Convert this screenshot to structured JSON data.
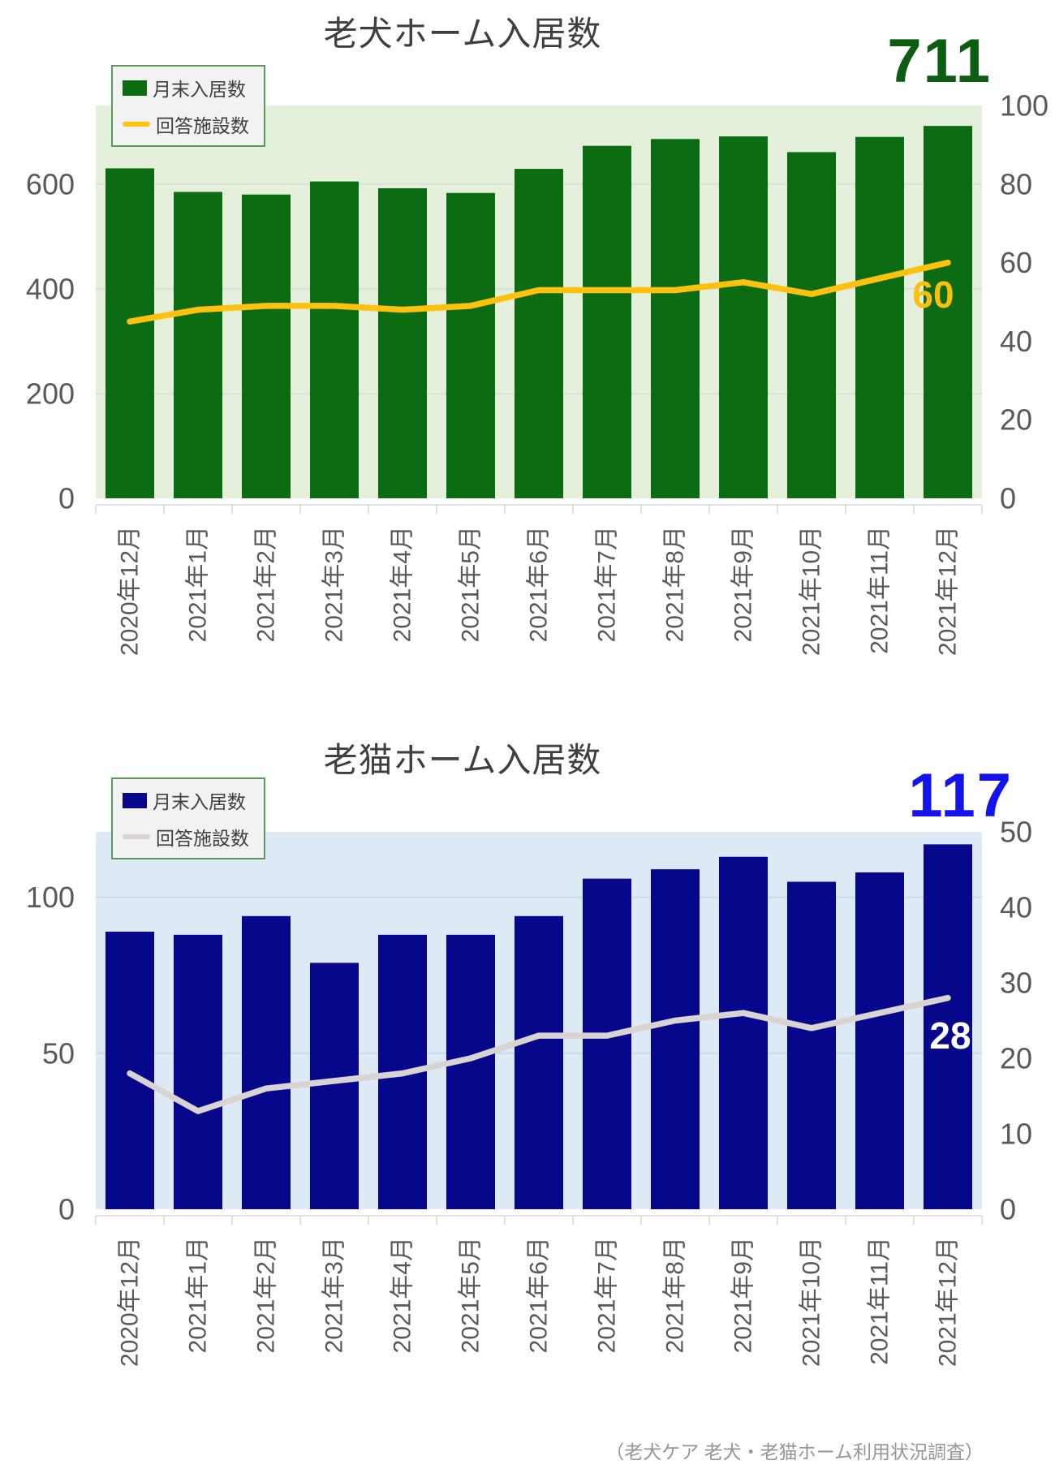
{
  "page": {
    "background": "#ffffff",
    "source_note": "（老犬ケア 老犬・老猫ホーム利用状況調査）"
  },
  "chart_data": [
    {
      "type": "bar",
      "subtype": "bar+line combo, dual axis",
      "title": "老犬ホーム入居数",
      "categories": [
        "2020年12月",
        "2021年1月",
        "2021年2月",
        "2021年3月",
        "2021年4月",
        "2021年5月",
        "2021年6月",
        "2021年7月",
        "2021年8月",
        "2021年9月",
        "2021年10月",
        "2021年11月",
        "2021年12月"
      ],
      "series": [
        {
          "name": "月末入居数",
          "chart": "bar",
          "axis": "left",
          "color": "#0c6c12",
          "values": [
            630,
            585,
            580,
            605,
            592,
            583,
            629,
            673,
            686,
            691,
            661,
            690,
            711
          ]
        },
        {
          "name": "回答施設数",
          "chart": "line",
          "axis": "right",
          "color": "#fec10d",
          "values": [
            45,
            48,
            49,
            49,
            48,
            49,
            53,
            53,
            53,
            55,
            52,
            56,
            60
          ]
        }
      ],
      "left_axis": {
        "max": 750,
        "ticks": [
          0,
          200,
          400,
          600
        ]
      },
      "right_axis": {
        "max": 100,
        "ticks": [
          0,
          20,
          40,
          60,
          80,
          100
        ]
      },
      "grid": "horizontal, left-axis ticks only",
      "legend_position": "top-left",
      "annotations": {
        "value_label": "711",
        "value_color": "#0b5e11",
        "line_end_label": "60",
        "line_end_color": "#febf0c"
      },
      "colors": {
        "plot_bg": "#e4efdc",
        "gridline": "#d9e2d2",
        "axis_text": "#595959",
        "tick_mark": "#d9d9d9"
      }
    },
    {
      "type": "bar",
      "subtype": "bar+line combo, dual axis",
      "title": "老猫ホーム入居数",
      "categories": [
        "2020年12月",
        "2021年1月",
        "2021年2月",
        "2021年3月",
        "2021年4月",
        "2021年5月",
        "2021年6月",
        "2021年7月",
        "2021年8月",
        "2021年9月",
        "2021年10月",
        "2021年11月",
        "2021年12月"
      ],
      "series": [
        {
          "name": "月末入居数",
          "chart": "bar",
          "axis": "left",
          "color": "#07078c",
          "values": [
            89,
            88,
            94,
            79,
            88,
            88,
            94,
            106,
            109,
            113,
            105,
            108,
            117
          ]
        },
        {
          "name": "回答施設数",
          "chart": "line",
          "axis": "right",
          "color": "#d9d3d1",
          "values": [
            18,
            13,
            16,
            17,
            18,
            20,
            23,
            23,
            25,
            26,
            24,
            26,
            28
          ]
        }
      ],
      "left_axis": {
        "max": 121,
        "ticks": [
          0,
          50,
          100
        ]
      },
      "right_axis": {
        "max": 50,
        "ticks": [
          0,
          10,
          20,
          30,
          40,
          50
        ]
      },
      "grid": "horizontal, left-axis ticks only",
      "legend_position": "top-left",
      "annotations": {
        "value_label": "117",
        "value_color": "#1313ee",
        "line_end_label": "28",
        "line_end_color": "#ffffff"
      },
      "colors": {
        "plot_bg": "#dde9f4",
        "gridline": "#ccd9e6",
        "axis_text": "#595959",
        "tick_mark": "#d9d9d9"
      }
    }
  ]
}
